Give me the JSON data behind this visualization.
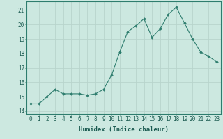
{
  "x": [
    0,
    1,
    2,
    3,
    4,
    5,
    6,
    7,
    8,
    9,
    10,
    11,
    12,
    13,
    14,
    15,
    16,
    17,
    18,
    19,
    20,
    21,
    22,
    23
  ],
  "y": [
    14.5,
    14.5,
    15.0,
    15.5,
    15.2,
    15.2,
    15.2,
    15.1,
    15.2,
    15.5,
    16.5,
    18.1,
    19.5,
    19.9,
    20.4,
    19.1,
    19.7,
    20.7,
    21.2,
    20.1,
    19.0,
    18.1,
    17.8,
    17.4
  ],
  "xlabel": "Humidex (Indice chaleur)",
  "ylim": [
    13.8,
    21.6
  ],
  "yticks": [
    14,
    15,
    16,
    17,
    18,
    19,
    20,
    21
  ],
  "xticks": [
    0,
    1,
    2,
    3,
    4,
    5,
    6,
    7,
    8,
    9,
    10,
    11,
    12,
    13,
    14,
    15,
    16,
    17,
    18,
    19,
    20,
    21,
    22,
    23
  ],
  "line_color": "#2e7d6e",
  "marker_color": "#2e7d6e",
  "bg_color": "#cce8e0",
  "grid_color": "#b8d4cc",
  "tick_fontsize": 5.5,
  "label_fontsize": 6.5
}
